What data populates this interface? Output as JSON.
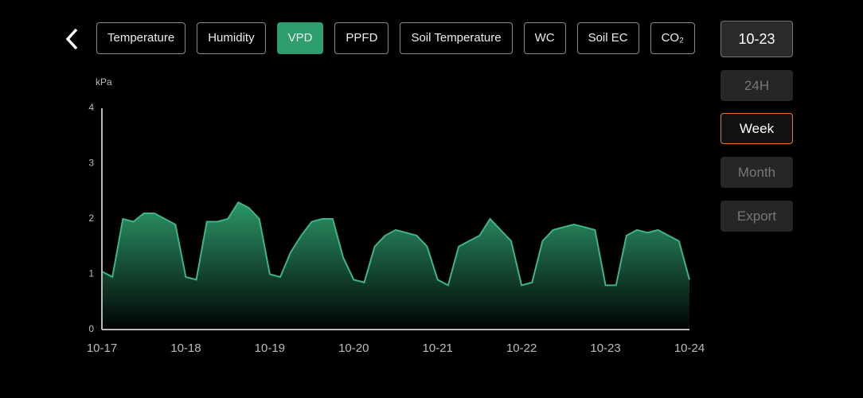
{
  "tabs": [
    "Temperature",
    "Humidity",
    "VPD",
    "PPFD",
    "Soil Temperature",
    "WC",
    "Soil EC",
    "CO₂"
  ],
  "date_button": "10-23",
  "ranges": [
    "24H",
    "Week",
    "Month"
  ],
  "export": "Export",
  "chart_data": {
    "type": "area",
    "y_label": "kPa",
    "color": "#3db586",
    "x": [
      0,
      0.125,
      0.25,
      0.375,
      0.5,
      0.625,
      0.75,
      0.875,
      1,
      1.125,
      1.25,
      1.375,
      1.5,
      1.625,
      1.75,
      1.875,
      2,
      2.125,
      2.25,
      2.375,
      2.5,
      2.625,
      2.75,
      2.875,
      3,
      3.125,
      3.25,
      3.375,
      3.5,
      3.625,
      3.75,
      3.875,
      4,
      4.125,
      4.25,
      4.375,
      4.5,
      4.625,
      4.75,
      4.875,
      5,
      5.125,
      5.25,
      5.375,
      5.5,
      5.625,
      5.75,
      5.875,
      6,
      6.125,
      6.25,
      6.375,
      6.5,
      6.625,
      6.75,
      6.875,
      7
    ],
    "values": [
      1.05,
      0.95,
      2.0,
      1.95,
      2.1,
      2.1,
      2.0,
      1.9,
      0.95,
      0.9,
      1.95,
      1.95,
      2.0,
      2.3,
      2.2,
      2.0,
      1.0,
      0.95,
      1.4,
      1.7,
      1.95,
      2.0,
      2.0,
      1.3,
      0.9,
      0.85,
      1.5,
      1.7,
      1.8,
      1.75,
      1.7,
      1.5,
      0.9,
      0.8,
      1.5,
      1.6,
      1.7,
      2.0,
      1.8,
      1.6,
      0.8,
      0.85,
      1.6,
      1.8,
      1.85,
      1.9,
      1.85,
      1.8,
      0.8,
      0.8,
      1.7,
      1.8,
      1.75,
      1.8,
      1.7,
      1.6,
      0.9
    ],
    "xlim": [
      0,
      7
    ],
    "xticks": [
      {
        "value": 0,
        "label": "10-17"
      },
      {
        "value": 1,
        "label": "10-18"
      },
      {
        "value": 2,
        "label": "10-19"
      },
      {
        "value": 3,
        "label": "10-20"
      },
      {
        "value": 4,
        "label": "10-21"
      },
      {
        "value": 5,
        "label": "10-22"
      },
      {
        "value": 6,
        "label": "10-23"
      },
      {
        "value": 7,
        "label": "10-24"
      }
    ],
    "ylim": [
      0,
      4
    ],
    "yticks": [
      0,
      1,
      2,
      3,
      4
    ]
  }
}
